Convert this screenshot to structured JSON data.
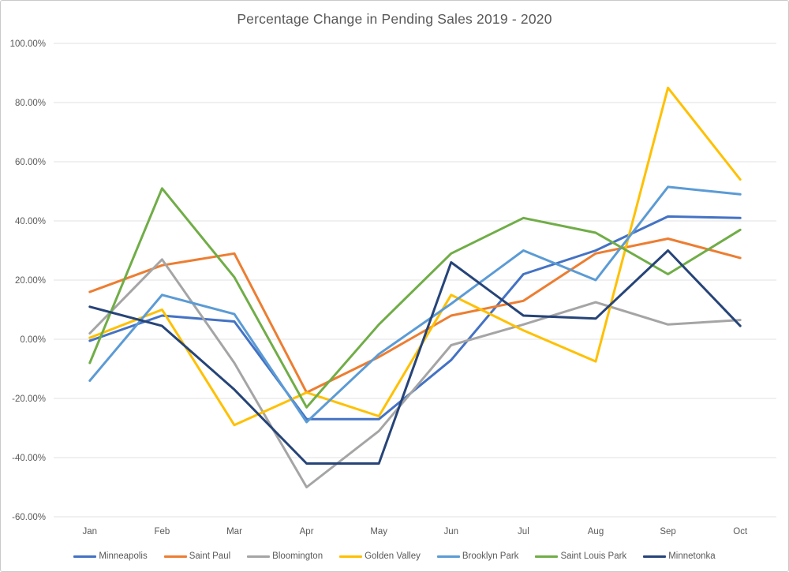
{
  "chart_data": {
    "type": "line",
    "title": "Percentage Change in Pending Sales 2019 - 2020",
    "categories": [
      "Jan",
      "Feb",
      "Mar",
      "Apr",
      "May",
      "Jun",
      "Jul",
      "Aug",
      "Sep",
      "Oct"
    ],
    "xlabel": "",
    "ylabel": "",
    "y_axis": {
      "min": -60,
      "max": 100,
      "step": 20,
      "unit": "%"
    },
    "y_tick_labels": [
      "100.00%",
      "80.00%",
      "60.00%",
      "40.00%",
      "20.00%",
      "0.00%",
      "-20.00%",
      "-40.00%",
      "-60.00%"
    ],
    "grid": true,
    "legend_position": "bottom",
    "series": [
      {
        "name": "Minneapolis",
        "color": "#4472C4",
        "values": [
          -0.5,
          8,
          6,
          -27,
          -27,
          -7,
          22,
          30,
          41.5,
          41
        ]
      },
      {
        "name": "Saint Paul",
        "color": "#ED7D31",
        "values": [
          16,
          25,
          29,
          -18,
          -6,
          8,
          13,
          29,
          34,
          27.5
        ]
      },
      {
        "name": "Bloomington",
        "color": "#A5A5A5",
        "values": [
          2,
          27,
          -8,
          -50,
          -31,
          -2,
          5,
          12.5,
          5,
          6.5
        ]
      },
      {
        "name": "Golden Valley",
        "color": "#FFC000",
        "values": [
          0.5,
          10,
          -29,
          -18,
          -26,
          15,
          3,
          -7.5,
          85,
          54
        ]
      },
      {
        "name": "Brooklyn Park",
        "color": "#5B9BD5",
        "values": [
          -14,
          15,
          8.5,
          -28,
          -5,
          12,
          30,
          20,
          51.5,
          49
        ]
      },
      {
        "name": "Saint Louis Park",
        "color": "#70AD47",
        "values": [
          -8,
          51,
          21,
          -23,
          5,
          29,
          41,
          36,
          22,
          37
        ]
      },
      {
        "name": "Minnetonka",
        "color": "#264478",
        "values": [
          11,
          4.5,
          -17,
          -42,
          -42,
          26,
          8,
          7,
          30,
          4.5
        ]
      }
    ],
    "style": {
      "text_color": "#595959",
      "gridline_color": "#e1e1e1",
      "line_width": 3
    }
  }
}
